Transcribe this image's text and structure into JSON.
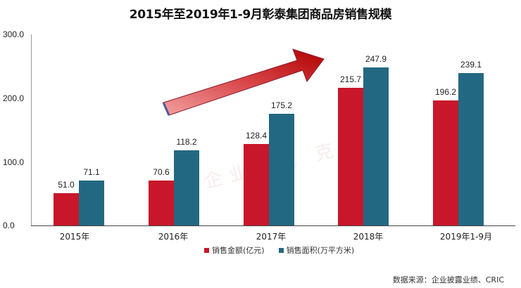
{
  "chart_data": {
    "type": "bar",
    "title": "2015年至2019年1-9月彰泰集团商品房销售规模",
    "categories": [
      "2015年",
      "2016年",
      "2017年",
      "2018年",
      "2019年1-9月"
    ],
    "series": [
      {
        "name": "销售金额(亿元)",
        "color": "#c8172a",
        "values": [
          51.0,
          70.6,
          128.4,
          215.7,
          196.2
        ],
        "labels": [
          "51.0",
          "70.6",
          "128.4",
          "215.7",
          "196.2"
        ]
      },
      {
        "name": "销售面积(万平方米)",
        "color": "#236882",
        "values": [
          71.1,
          118.2,
          175.2,
          247.9,
          239.1
        ],
        "labels": [
          "71.1",
          "118.2",
          "175.2",
          "247.9",
          "239.1"
        ]
      }
    ],
    "xlabel": "",
    "ylabel": "",
    "ylim": [
      0,
      300
    ],
    "yticks": [
      "0.0",
      "100.0",
      "200.0",
      "300.0"
    ],
    "grid": false,
    "legend_position": "bottom",
    "annotations": [
      "upward trend arrow"
    ],
    "source": "数据来源：企业披露业绩、CRIC"
  },
  "watermark": "彰泰企业研究 克而瑞"
}
